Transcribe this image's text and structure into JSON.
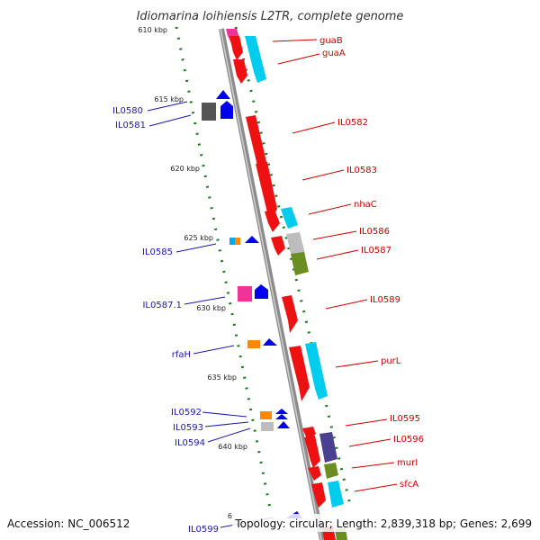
{
  "title": "Idiomarina loihiensis L2TR, complete genome",
  "footer": {
    "accession": "Accession: NC_006512",
    "summary": "Topology: circular; Length: 2,839,318 bp; Genes: 2,699"
  },
  "scale_labels": [
    "610 kbp",
    "615 kbp",
    "620 kbp",
    "625 kbp",
    "630 kbp",
    "635 kbp",
    "640 kbp",
    "6"
  ],
  "genes_left": [
    "IL0580",
    "IL0581",
    "IL0585",
    "IL0587.1",
    "rfaH",
    "IL0592",
    "IL0593",
    "IL0594",
    "IL0599"
  ],
  "genes_right": [
    "guaB",
    "guaA",
    "IL0582",
    "IL0583",
    "nhaC",
    "IL0586",
    "IL0587",
    "IL0589",
    "purL",
    "IL0595",
    "IL0596",
    "murI",
    "sfcA"
  ],
  "colors": {
    "forward_strand_label": "#cc0000",
    "reverse_strand_label": "#1a1aa6",
    "genome_axis": "#8c8c8c",
    "scale_dots": "#1e7a1e",
    "gene_red": "#ee1111",
    "gene_cyan": "#00ccee",
    "gene_blue": "#0000ee",
    "gene_magenta": "#ee3399",
    "gene_olive": "#6b8e23",
    "gene_gray": "#555555",
    "gene_orange": "#ff8800",
    "gene_purple": "#4b3f8f"
  }
}
